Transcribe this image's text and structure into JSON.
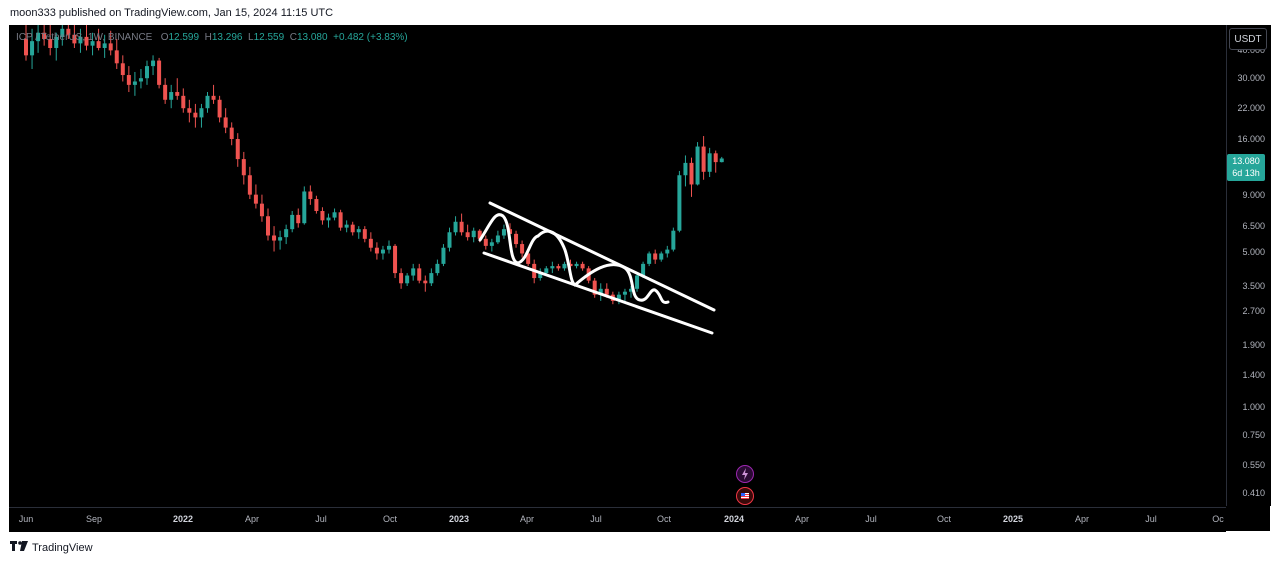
{
  "header": {
    "published_text": "moon333 published on TradingView.com, Jan 15, 2024 11:15 UTC"
  },
  "currency_button": "USDT",
  "legend": {
    "symbol": "ICP / TetherUS, 1W, BINANCE",
    "open_label": "O",
    "open": "12.599",
    "high_label": "H",
    "high": "13.296",
    "low_label": "L",
    "low": "12.559",
    "close_label": "C",
    "close": "13.080",
    "change": "+0.482 (+3.83%)"
  },
  "price_tag": {
    "price": "13.080",
    "countdown": "6d 13h"
  },
  "footer": {
    "brand": "TradingView",
    "logo_icon": "tradingview-logo-icon"
  },
  "events": [
    {
      "icon": "lightning-icon",
      "color": "#9c27b0"
    },
    {
      "icon": "us-flag-icon",
      "color": "#f23645"
    }
  ],
  "chart_data": {
    "type": "candlestick",
    "y_scale": "log",
    "ylim": [
      0.36,
      52
    ],
    "y_ticks": [
      {
        "value": 40,
        "label": "40.000"
      },
      {
        "value": 30,
        "label": "30.000"
      },
      {
        "value": 22,
        "label": "22.000"
      },
      {
        "value": 16,
        "label": "16.000"
      },
      {
        "value": 9,
        "label": "9.000"
      },
      {
        "value": 6.5,
        "label": "6.500"
      },
      {
        "value": 5,
        "label": "5.000"
      },
      {
        "value": 3.5,
        "label": "3.500"
      },
      {
        "value": 2.7,
        "label": "2.700"
      },
      {
        "value": 1.9,
        "label": "1.900"
      },
      {
        "value": 1.4,
        "label": "1.400"
      },
      {
        "value": 1,
        "label": "1.000"
      },
      {
        "value": 0.75,
        "label": "0.750"
      },
      {
        "value": 0.55,
        "label": "0.550"
      },
      {
        "value": 0.41,
        "label": "0.410"
      }
    ],
    "x_ticks": [
      {
        "label": "Jun",
        "bold": false
      },
      {
        "label": "Sep",
        "bold": false
      },
      {
        "label": "2022",
        "bold": true
      },
      {
        "label": "Apr",
        "bold": false
      },
      {
        "label": "Jul",
        "bold": false
      },
      {
        "label": "Oct",
        "bold": false
      },
      {
        "label": "2023",
        "bold": true
      },
      {
        "label": "Apr",
        "bold": false
      },
      {
        "label": "Jul",
        "bold": false
      },
      {
        "label": "Oct",
        "bold": false
      },
      {
        "label": "2024",
        "bold": true
      },
      {
        "label": "Apr",
        "bold": false
      },
      {
        "label": "Jul",
        "bold": false
      },
      {
        "label": "Oct",
        "bold": false
      },
      {
        "label": "2025",
        "bold": true
      },
      {
        "label": "Apr",
        "bold": false
      },
      {
        "label": "Jul",
        "bold": false
      },
      {
        "label": "Oc",
        "bold": false
      }
    ],
    "colors": {
      "up": "#26a69a",
      "down": "#ef5350",
      "annotation": "#ffffff"
    },
    "candles": [
      {
        "o": 45,
        "h": 58,
        "l": 36,
        "c": 38
      },
      {
        "o": 38,
        "h": 50,
        "l": 33,
        "c": 44
      },
      {
        "o": 44,
        "h": 56,
        "l": 39,
        "c": 48
      },
      {
        "o": 48,
        "h": 60,
        "l": 42,
        "c": 45
      },
      {
        "o": 45,
        "h": 52,
        "l": 38,
        "c": 41
      },
      {
        "o": 41,
        "h": 48,
        "l": 36,
        "c": 46
      },
      {
        "o": 46,
        "h": 55,
        "l": 42,
        "c": 50
      },
      {
        "o": 50,
        "h": 58,
        "l": 45,
        "c": 47
      },
      {
        "o": 47,
        "h": 53,
        "l": 41,
        "c": 43
      },
      {
        "o": 43,
        "h": 50,
        "l": 39,
        "c": 46
      },
      {
        "o": 46,
        "h": 52,
        "l": 40,
        "c": 42
      },
      {
        "o": 42,
        "h": 48,
        "l": 38,
        "c": 44
      },
      {
        "o": 44,
        "h": 50,
        "l": 40,
        "c": 41
      },
      {
        "o": 41,
        "h": 47,
        "l": 37,
        "c": 43
      },
      {
        "o": 43,
        "h": 49,
        "l": 38,
        "c": 40
      },
      {
        "o": 40,
        "h": 45,
        "l": 33,
        "c": 35
      },
      {
        "o": 35,
        "h": 38,
        "l": 29,
        "c": 31
      },
      {
        "o": 31,
        "h": 34,
        "l": 26,
        "c": 28
      },
      {
        "o": 28,
        "h": 32,
        "l": 25,
        "c": 29
      },
      {
        "o": 29,
        "h": 33,
        "l": 27,
        "c": 30
      },
      {
        "o": 30,
        "h": 36,
        "l": 28,
        "c": 34
      },
      {
        "o": 34,
        "h": 38,
        "l": 31,
        "c": 36
      },
      {
        "o": 36,
        "h": 37,
        "l": 27,
        "c": 28
      },
      {
        "o": 28,
        "h": 30,
        "l": 23,
        "c": 24
      },
      {
        "o": 24,
        "h": 28,
        "l": 22,
        "c": 26
      },
      {
        "o": 26,
        "h": 30,
        "l": 24,
        "c": 25
      },
      {
        "o": 25,
        "h": 27,
        "l": 21,
        "c": 22
      },
      {
        "o": 22,
        "h": 24,
        "l": 19,
        "c": 21
      },
      {
        "o": 21,
        "h": 23,
        "l": 18,
        "c": 20
      },
      {
        "o": 20,
        "h": 23,
        "l": 18,
        "c": 22
      },
      {
        "o": 22,
        "h": 26,
        "l": 21,
        "c": 25
      },
      {
        "o": 25,
        "h": 28,
        "l": 23,
        "c": 24
      },
      {
        "o": 24,
        "h": 25,
        "l": 19,
        "c": 20
      },
      {
        "o": 20,
        "h": 22,
        "l": 17,
        "c": 18
      },
      {
        "o": 18,
        "h": 19,
        "l": 15,
        "c": 16
      },
      {
        "o": 16,
        "h": 17,
        "l": 12,
        "c": 13
      },
      {
        "o": 13,
        "h": 14,
        "l": 10,
        "c": 11
      },
      {
        "o": 11,
        "h": 12,
        "l": 8.6,
        "c": 9
      },
      {
        "o": 9,
        "h": 10,
        "l": 7.8,
        "c": 8.2
      },
      {
        "o": 8.2,
        "h": 9,
        "l": 6.8,
        "c": 7.2
      },
      {
        "o": 7.2,
        "h": 7.8,
        "l": 5.6,
        "c": 5.9
      },
      {
        "o": 5.9,
        "h": 6.5,
        "l": 5,
        "c": 5.6
      },
      {
        "o": 5.6,
        "h": 6.2,
        "l": 5.1,
        "c": 5.8
      },
      {
        "o": 5.8,
        "h": 6.6,
        "l": 5.4,
        "c": 6.3
      },
      {
        "o": 6.3,
        "h": 7.6,
        "l": 6.1,
        "c": 7.3
      },
      {
        "o": 7.3,
        "h": 7.8,
        "l": 6.4,
        "c": 6.7
      },
      {
        "o": 6.7,
        "h": 9.8,
        "l": 6.6,
        "c": 9.3
      },
      {
        "o": 9.3,
        "h": 9.9,
        "l": 8.1,
        "c": 8.6
      },
      {
        "o": 8.6,
        "h": 8.9,
        "l": 7.4,
        "c": 7.6
      },
      {
        "o": 7.6,
        "h": 7.9,
        "l": 6.6,
        "c": 6.9
      },
      {
        "o": 6.9,
        "h": 7.4,
        "l": 6.4,
        "c": 7.1
      },
      {
        "o": 7.1,
        "h": 7.8,
        "l": 6.9,
        "c": 7.5
      },
      {
        "o": 7.5,
        "h": 7.7,
        "l": 6.2,
        "c": 6.4
      },
      {
        "o": 6.4,
        "h": 6.9,
        "l": 6.1,
        "c": 6.6
      },
      {
        "o": 6.6,
        "h": 6.8,
        "l": 5.9,
        "c": 6.1
      },
      {
        "o": 6.1,
        "h": 6.5,
        "l": 5.7,
        "c": 6.3
      },
      {
        "o": 6.3,
        "h": 6.5,
        "l": 5.5,
        "c": 5.7
      },
      {
        "o": 5.7,
        "h": 6.1,
        "l": 5,
        "c": 5.2
      },
      {
        "o": 5.2,
        "h": 5.5,
        "l": 4.6,
        "c": 4.9
      },
      {
        "o": 4.9,
        "h": 5.3,
        "l": 4.6,
        "c": 5.1
      },
      {
        "o": 5.1,
        "h": 5.6,
        "l": 4.9,
        "c": 5.3
      },
      {
        "o": 5.3,
        "h": 5.4,
        "l": 3.8,
        "c": 4
      },
      {
        "o": 4,
        "h": 4.2,
        "l": 3.4,
        "c": 3.6
      },
      {
        "o": 3.6,
        "h": 4,
        "l": 3.5,
        "c": 3.9
      },
      {
        "o": 3.9,
        "h": 4.4,
        "l": 3.7,
        "c": 4.2
      },
      {
        "o": 4.2,
        "h": 4.4,
        "l": 3.6,
        "c": 3.7
      },
      {
        "o": 3.7,
        "h": 3.9,
        "l": 3.3,
        "c": 3.6
      },
      {
        "o": 3.6,
        "h": 4.2,
        "l": 3.5,
        "c": 4
      },
      {
        "o": 4,
        "h": 4.6,
        "l": 3.9,
        "c": 4.4
      },
      {
        "o": 4.4,
        "h": 5.4,
        "l": 4.3,
        "c": 5.2
      },
      {
        "o": 5.2,
        "h": 6.4,
        "l": 5,
        "c": 6.1
      },
      {
        "o": 6.1,
        "h": 7.2,
        "l": 5.9,
        "c": 6.8
      },
      {
        "o": 6.8,
        "h": 7.4,
        "l": 5.9,
        "c": 6.1
      },
      {
        "o": 6.1,
        "h": 6.6,
        "l": 5.6,
        "c": 5.8
      },
      {
        "o": 5.8,
        "h": 6.4,
        "l": 5.5,
        "c": 6.2
      },
      {
        "o": 6.2,
        "h": 6.3,
        "l": 5.5,
        "c": 5.7
      },
      {
        "o": 5.7,
        "h": 5.9,
        "l": 5.1,
        "c": 5.3
      },
      {
        "o": 5.3,
        "h": 5.7,
        "l": 5,
        "c": 5.5
      },
      {
        "o": 5.5,
        "h": 6.2,
        "l": 5.4,
        "c": 5.9
      },
      {
        "o": 5.9,
        "h": 6.6,
        "l": 5.7,
        "c": 6.3
      },
      {
        "o": 6.3,
        "h": 6.7,
        "l": 5.8,
        "c": 6
      },
      {
        "o": 6,
        "h": 6.2,
        "l": 5.2,
        "c": 5.4
      },
      {
        "o": 5.4,
        "h": 5.6,
        "l": 4.7,
        "c": 4.9
      },
      {
        "o": 4.9,
        "h": 5.1,
        "l": 4.3,
        "c": 4.4
      },
      {
        "o": 4.4,
        "h": 4.6,
        "l": 3.6,
        "c": 3.8
      },
      {
        "o": 3.8,
        "h": 4.2,
        "l": 3.7,
        "c": 4
      },
      {
        "o": 4,
        "h": 4.3,
        "l": 3.9,
        "c": 4.2
      },
      {
        "o": 4.2,
        "h": 4.5,
        "l": 4,
        "c": 4.3
      },
      {
        "o": 4.3,
        "h": 4.4,
        "l": 4.1,
        "c": 4.2
      },
      {
        "o": 4.2,
        "h": 4.5,
        "l": 4.1,
        "c": 4.4
      },
      {
        "o": 4.4,
        "h": 4.6,
        "l": 4.2,
        "c": 4.3
      },
      {
        "o": 4.3,
        "h": 4.5,
        "l": 4.2,
        "c": 4.4
      },
      {
        "o": 4.4,
        "h": 4.5,
        "l": 4.1,
        "c": 4.2
      },
      {
        "o": 4.2,
        "h": 4.3,
        "l": 3.6,
        "c": 3.7
      },
      {
        "o": 3.7,
        "h": 3.8,
        "l": 3.1,
        "c": 3.2
      },
      {
        "o": 3.2,
        "h": 3.6,
        "l": 3,
        "c": 3.4
      },
      {
        "o": 3.4,
        "h": 3.6,
        "l": 3.1,
        "c": 3.2
      },
      {
        "o": 3.2,
        "h": 3.3,
        "l": 2.9,
        "c": 3
      },
      {
        "o": 3,
        "h": 3.3,
        "l": 2.9,
        "c": 3.2
      },
      {
        "o": 3.2,
        "h": 3.4,
        "l": 3,
        "c": 3.3
      },
      {
        "o": 3.3,
        "h": 3.5,
        "l": 3.1,
        "c": 3.4
      },
      {
        "o": 3.4,
        "h": 4,
        "l": 3.3,
        "c": 3.9
      },
      {
        "o": 3.9,
        "h": 4.5,
        "l": 3.8,
        "c": 4.4
      },
      {
        "o": 4.4,
        "h": 5,
        "l": 4.3,
        "c": 4.9
      },
      {
        "o": 4.9,
        "h": 5.1,
        "l": 4.4,
        "c": 4.6
      },
      {
        "o": 4.6,
        "h": 5,
        "l": 4.5,
        "c": 4.9
      },
      {
        "o": 4.9,
        "h": 5.3,
        "l": 4.7,
        "c": 5.1
      },
      {
        "o": 5.1,
        "h": 6.4,
        "l": 5,
        "c": 6.2
      },
      {
        "o": 6.2,
        "h": 11.5,
        "l": 6.1,
        "c": 11
      },
      {
        "o": 11,
        "h": 13.5,
        "l": 9.8,
        "c": 12.5
      },
      {
        "o": 12.5,
        "h": 13.2,
        "l": 8.8,
        "c": 10
      },
      {
        "o": 10,
        "h": 15.5,
        "l": 9.9,
        "c": 14.8
      },
      {
        "o": 14.8,
        "h": 16.5,
        "l": 10.5,
        "c": 11.4
      },
      {
        "o": 11.4,
        "h": 14.6,
        "l": 10.8,
        "c": 13.8
      },
      {
        "o": 13.8,
        "h": 14.2,
        "l": 11.3,
        "c": 12.6
      },
      {
        "o": 12.599,
        "h": 13.296,
        "l": 12.559,
        "c": 13.08
      }
    ]
  }
}
